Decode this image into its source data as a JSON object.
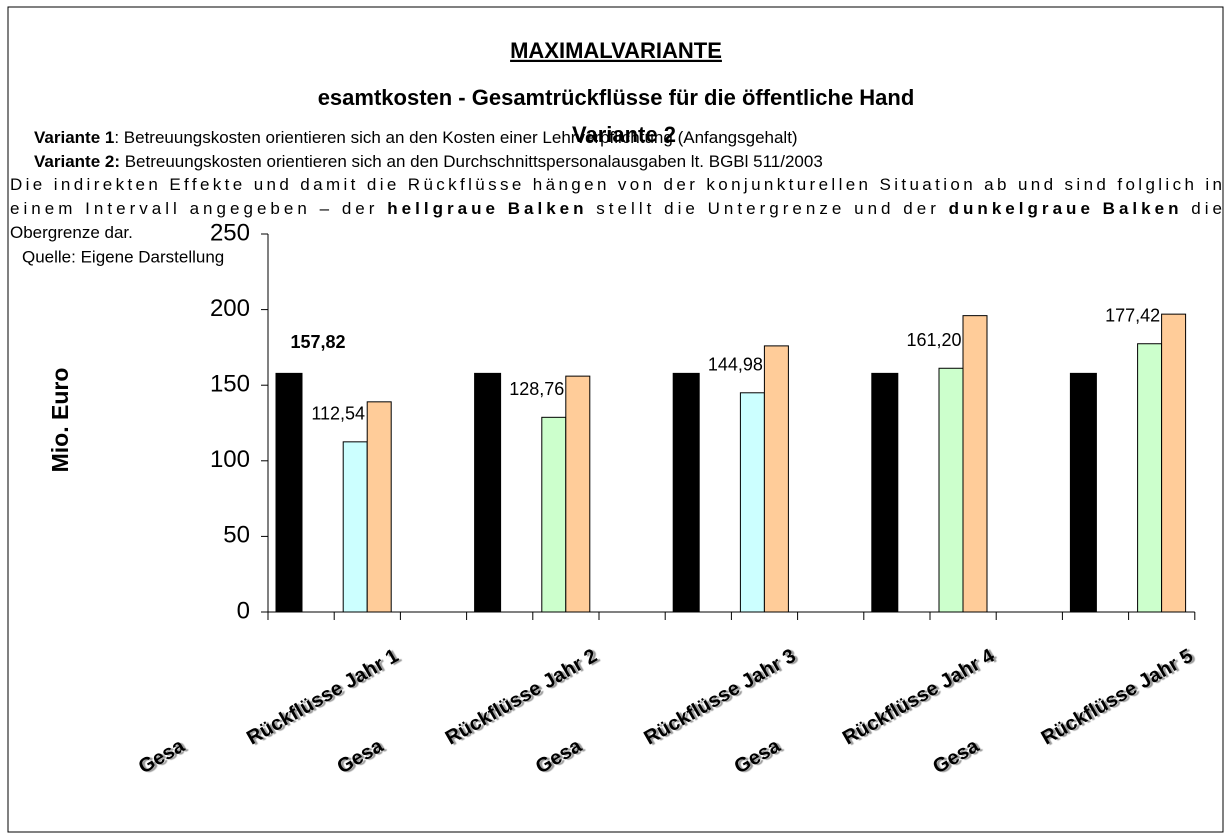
{
  "chart_data": {
    "type": "bar",
    "title": "MAXIMALVARIANTE",
    "subtitle": "esamtkosten - Gesamtrückflüsse für die öffentliche Hand",
    "overlay_title": "Variante 2",
    "notes": [
      [
        {
          "text": "Variante 1",
          "bold": true
        },
        {
          "text": ": Betreuungskosten orientieren sich an den Kosten einer Lehrverpflichtung (Anfangsgehalt)",
          "bold": false
        }
      ],
      [
        {
          "text": "Variante 2:",
          "bold": true
        },
        {
          "text": " Betreuungskosten orientieren sich an den Durchschnittspersonalausgaben lt. BGBl 511/2003",
          "bold": false
        }
      ]
    ],
    "paragraph": [
      [
        {
          "text": "Die indirekten Effekte und damit die Rückflüsse hängen von der konjunkturellen Situation ab und sind folglich in",
          "bold": false
        }
      ],
      [
        {
          "text": "einem Intervall angegeben – der ",
          "bold": false
        },
        {
          "text": "hellgraue Balken",
          "bold": true
        },
        {
          "text": " stellt die Untergrenze und der ",
          "bold": false
        },
        {
          "text": "dunkelgraue Balken",
          "bold": true
        },
        {
          "text": " die",
          "bold": false
        }
      ],
      [
        {
          "text": "Obergrenze dar.",
          "bold": false
        }
      ]
    ],
    "source": "Quelle: Eigene Darstellung",
    "y_label": "Mio. Euro",
    "categories": [
      "Gesa",
      "Rückflüsse Jahr 1",
      null,
      "Gesa",
      "Rückflüsse Jahr 2",
      null,
      "Gesa",
      "Rückflüsse Jahr 3",
      null,
      "Gesa",
      "Rückflüsse Jahr 4",
      null,
      "Gesa",
      "Rückflüsse Jahr 5"
    ],
    "series": [
      {
        "color": "#000000",
        "values": [
          157.82,
          null,
          null,
          157.82,
          null,
          null,
          157.82,
          null,
          null,
          157.82,
          null,
          null,
          157.82,
          null
        ],
        "value_labels": [
          "157,82",
          null,
          null,
          null,
          null,
          null,
          null,
          null,
          null,
          null,
          null,
          null,
          null,
          null
        ]
      },
      {
        "colors": [
          null,
          "#ccffff",
          null,
          null,
          "#ccffcc",
          null,
          null,
          "#ccffff",
          null,
          null,
          "#ccffcc",
          null,
          null,
          "#ccffcc"
        ],
        "values": [
          null,
          112.54,
          null,
          null,
          128.76,
          null,
          null,
          144.98,
          null,
          null,
          161.2,
          null,
          null,
          177.42
        ],
        "value_labels": [
          null,
          "112,54",
          null,
          null,
          "128,76",
          null,
          null,
          "144,98",
          null,
          null,
          "161,20",
          null,
          null,
          "177,42"
        ]
      },
      {
        "color": "#ffcc99",
        "values": [
          null,
          139,
          null,
          null,
          156,
          null,
          null,
          176,
          null,
          null,
          196,
          null,
          null,
          197
        ]
      }
    ],
    "ylim": [
      0,
      250
    ],
    "yticks": [
      0,
      50,
      100,
      150,
      200,
      250
    ]
  }
}
